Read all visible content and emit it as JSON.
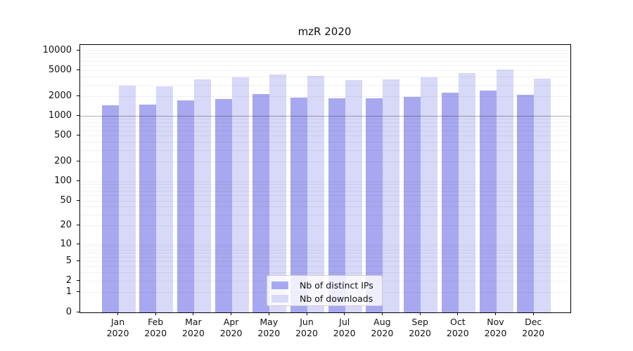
{
  "title": "mzR 2020",
  "colors": {
    "distinct_ips_bar": "#a8a8f0",
    "downloads_bar": "#d8d8f8",
    "grid_minor": "rgba(0,0,0,0.055)",
    "grid_1000": "rgba(0,0,0,0.32)",
    "axis": "#000000",
    "legend_border": "#d0d0d0"
  },
  "legend": {
    "entries": [
      {
        "label": "Nb of distinct IPs",
        "color": "#a8a8f0"
      },
      {
        "label": "Nb of downloads",
        "color": "#d8d8f8"
      }
    ]
  },
  "chart_data": {
    "type": "bar",
    "title": "mzR 2020",
    "categories": [
      "Jan 2020",
      "Feb 2020",
      "Mar 2020",
      "Apr 2020",
      "May 2020",
      "Jun 2020",
      "Jul 2020",
      "Aug 2020",
      "Sep 2020",
      "Oct 2020",
      "Nov 2020",
      "Dec 2020"
    ],
    "x_tick_line1": [
      "Jan",
      "Feb",
      "Mar",
      "Apr",
      "May",
      "Jun",
      "Jul",
      "Aug",
      "Sep",
      "Oct",
      "Nov",
      "Dec"
    ],
    "x_tick_line2": [
      "2020",
      "2020",
      "2020",
      "2020",
      "2020",
      "2020",
      "2020",
      "2020",
      "2020",
      "2020",
      "2020",
      "2020"
    ],
    "series": [
      {
        "name": "Nb of distinct IPs",
        "color": "#a8a8f0",
        "values": [
          1490,
          1520,
          1740,
          1840,
          2170,
          1940,
          1870,
          1900,
          2000,
          2280,
          2500,
          2140
        ]
      },
      {
        "name": "Nb of downloads",
        "color": "#d8d8f8",
        "values": [
          2970,
          2900,
          3710,
          4000,
          4340,
          4200,
          3620,
          3710,
          4000,
          4640,
          5250,
          3800
        ]
      }
    ],
    "xlabel": "",
    "ylabel": "",
    "yscale": "log(1+y)",
    "y_ticks": [
      0,
      1,
      2,
      5,
      10,
      20,
      50,
      100,
      200,
      500,
      1000,
      2000,
      5000,
      10000
    ],
    "ylim": [
      0,
      10000
    ],
    "grid": "horizontal minor+major, emphasized line at 1000",
    "legend_position": "lower center"
  }
}
